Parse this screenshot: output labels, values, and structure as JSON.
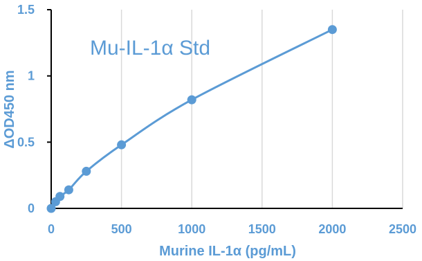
{
  "chart_data": {
    "type": "scatter",
    "title": "Mu-IL-1α Std",
    "xlabel": "Murine IL-1α (pg/mL)",
    "ylabel": "ΔOD450 nm",
    "xlim": [
      0,
      2500
    ],
    "ylim": [
      0,
      1.5
    ],
    "x_ticks": [
      0,
      500,
      1000,
      1500,
      2000,
      2500
    ],
    "y_ticks": [
      0,
      0.5,
      1,
      1.5
    ],
    "x_tick_labels": [
      "0",
      "500",
      "1000",
      "1500",
      "2000",
      "2500"
    ],
    "y_tick_labels": [
      "0",
      "0.5",
      "1",
      "1.5"
    ],
    "grid": "vertical",
    "smooth_line": true,
    "series": [
      {
        "x": [
          0,
          31.25,
          62.5,
          125,
          250,
          500,
          1000,
          2000
        ],
        "y": [
          0.0,
          0.05,
          0.09,
          0.14,
          0.28,
          0.48,
          0.82,
          1.35
        ]
      }
    ],
    "colors": {
      "series": "#5b9bd5",
      "text": "#5b9bd5",
      "grid": "#d9d9d9",
      "axis": "#000000"
    }
  }
}
